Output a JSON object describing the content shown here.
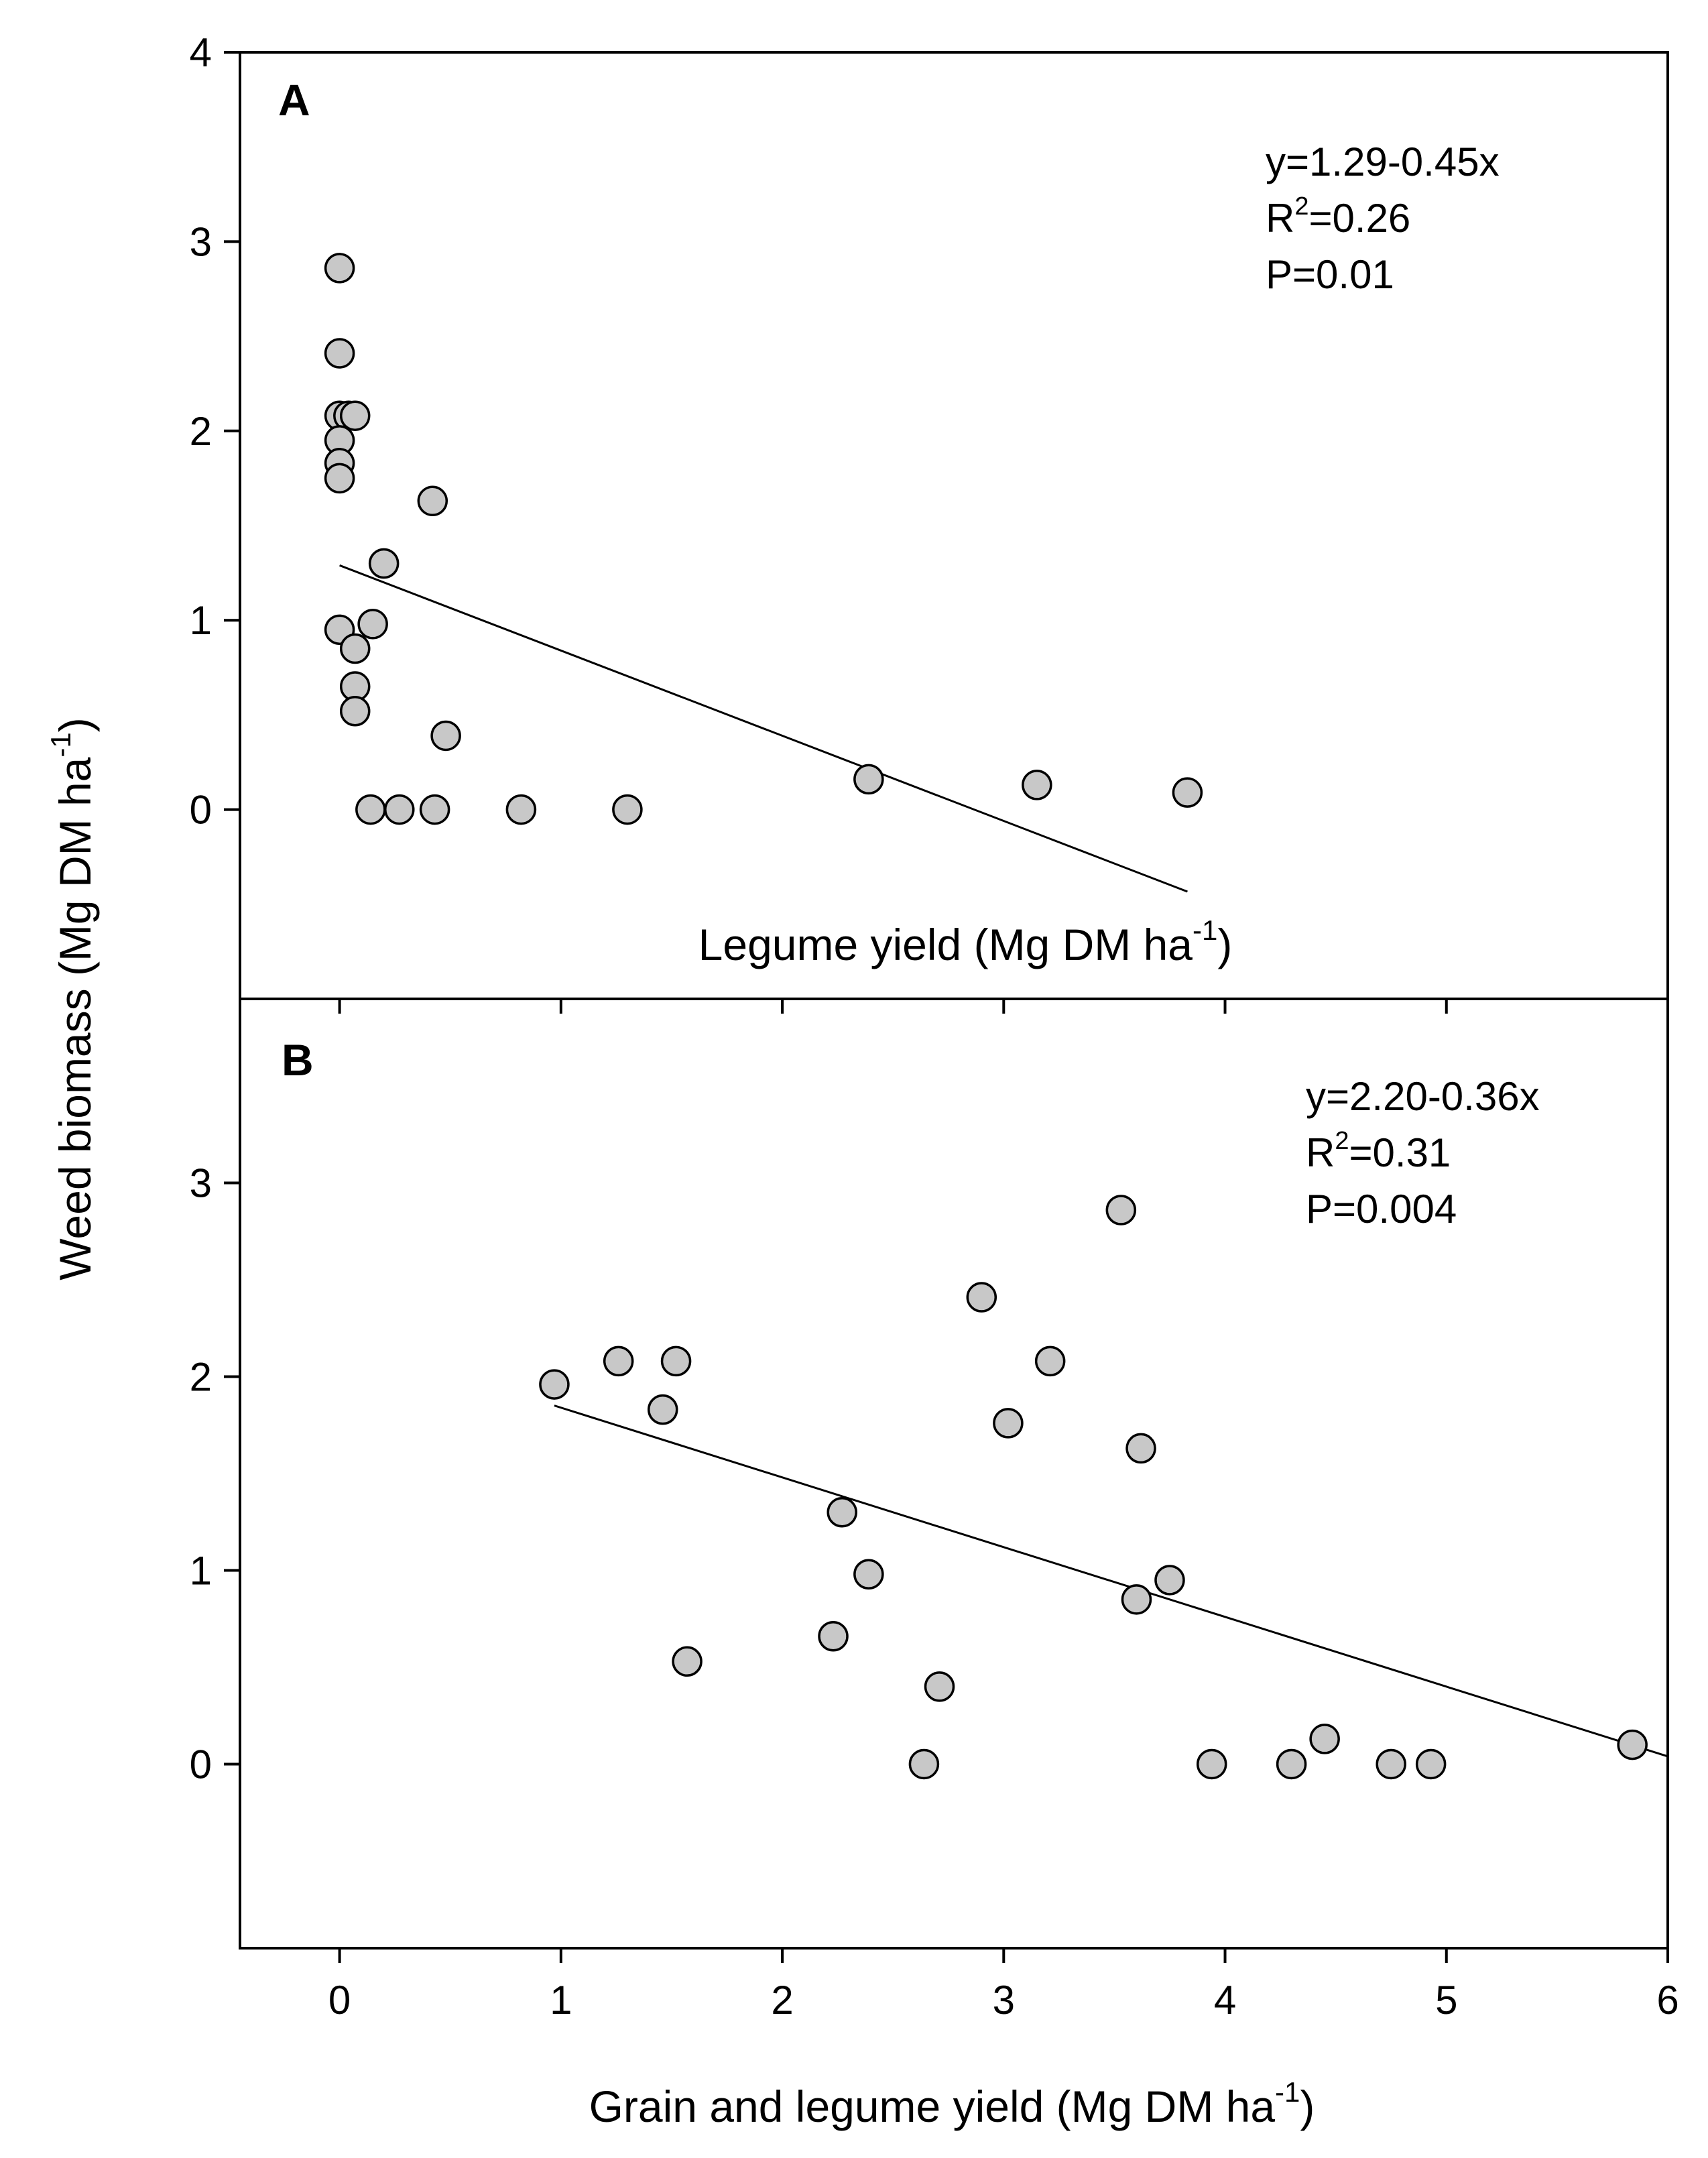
{
  "colors": {
    "marker_fill": "#c8c8c8",
    "marker_stroke": "#000000",
    "line": "#000000"
  },
  "y_axis_title": {
    "main": "Weed biomass (Mg DM ha",
    "sup": "-1",
    "end": ")"
  },
  "x_axis_title": {
    "main": "Grain and legume yield (Mg DM ha",
    "sup": "-1",
    "end": ")"
  },
  "chart_data": [
    {
      "type": "scatter",
      "panel": "A",
      "xlim": [
        -0.45,
        6
      ],
      "ylim": [
        -1,
        4
      ],
      "x_ticks": [
        0,
        1,
        2,
        3,
        4,
        5,
        6
      ],
      "y_ticks": [
        0,
        1,
        2,
        3,
        4
      ],
      "xlabel": {
        "main": "Legume yield (Mg DM ha",
        "sup": "-1",
        "end": ")"
      },
      "equation": "y=1.29-0.45x",
      "r2": {
        "prefix": "R",
        "sup": "2",
        "value": "=0.26"
      },
      "p": "P=0.01",
      "regression": {
        "intercept": 1.29,
        "slope": -0.45,
        "x_range": [
          0,
          3.83
        ]
      },
      "points": [
        {
          "x": 0.0,
          "y": 2.86
        },
        {
          "x": 0.0,
          "y": 2.41
        },
        {
          "x": 0.0,
          "y": 2.08
        },
        {
          "x": 0.04,
          "y": 2.08
        },
        {
          "x": 0.07,
          "y": 2.08
        },
        {
          "x": 0.0,
          "y": 1.95
        },
        {
          "x": 0.0,
          "y": 1.83
        },
        {
          "x": 0.0,
          "y": 1.75
        },
        {
          "x": 0.42,
          "y": 1.63
        },
        {
          "x": 0.2,
          "y": 1.3
        },
        {
          "x": 0.0,
          "y": 0.95
        },
        {
          "x": 0.15,
          "y": 0.98
        },
        {
          "x": 0.07,
          "y": 0.85
        },
        {
          "x": 0.07,
          "y": 0.65
        },
        {
          "x": 0.07,
          "y": 0.52
        },
        {
          "x": 0.48,
          "y": 0.39
        },
        {
          "x": 0.14,
          "y": 0.0
        },
        {
          "x": 0.27,
          "y": 0.0
        },
        {
          "x": 0.43,
          "y": 0.0
        },
        {
          "x": 0.82,
          "y": 0.0
        },
        {
          "x": 1.3,
          "y": 0.0
        },
        {
          "x": 2.39,
          "y": 0.16
        },
        {
          "x": 3.15,
          "y": 0.13
        },
        {
          "x": 3.83,
          "y": 0.09
        }
      ]
    },
    {
      "type": "scatter",
      "panel": "B",
      "xlim": [
        -0.45,
        6
      ],
      "ylim": [
        -0.95,
        3.95
      ],
      "x_ticks": [
        0,
        1,
        2,
        3,
        4,
        5,
        6
      ],
      "y_ticks": [
        0,
        1,
        2,
        3
      ],
      "equation": "y=2.20-0.36x",
      "r2": {
        "prefix": "R",
        "sup": "2",
        "value": "=0.31"
      },
      "p": "P=0.004",
      "regression": {
        "intercept": 2.2,
        "slope": -0.36,
        "x_range": [
          0.97,
          6.0
        ]
      },
      "points": [
        {
          "x": 0.97,
          "y": 1.96
        },
        {
          "x": 1.26,
          "y": 2.08
        },
        {
          "x": 1.46,
          "y": 1.83
        },
        {
          "x": 1.52,
          "y": 2.08
        },
        {
          "x": 1.57,
          "y": 0.53
        },
        {
          "x": 2.23,
          "y": 0.66
        },
        {
          "x": 2.27,
          "y": 1.3
        },
        {
          "x": 2.39,
          "y": 0.98
        },
        {
          "x": 2.64,
          "y": 0.0
        },
        {
          "x": 2.71,
          "y": 0.4
        },
        {
          "x": 2.9,
          "y": 2.41
        },
        {
          "x": 3.02,
          "y": 1.76
        },
        {
          "x": 3.21,
          "y": 2.08
        },
        {
          "x": 3.53,
          "y": 2.86
        },
        {
          "x": 3.6,
          "y": 0.85
        },
        {
          "x": 3.62,
          "y": 1.63
        },
        {
          "x": 3.75,
          "y": 0.95
        },
        {
          "x": 3.94,
          "y": 0.0
        },
        {
          "x": 4.3,
          "y": 0.0
        },
        {
          "x": 4.45,
          "y": 0.13
        },
        {
          "x": 4.75,
          "y": 0.0
        },
        {
          "x": 4.93,
          "y": 0.0
        },
        {
          "x": 5.84,
          "y": 0.1
        }
      ]
    }
  ]
}
